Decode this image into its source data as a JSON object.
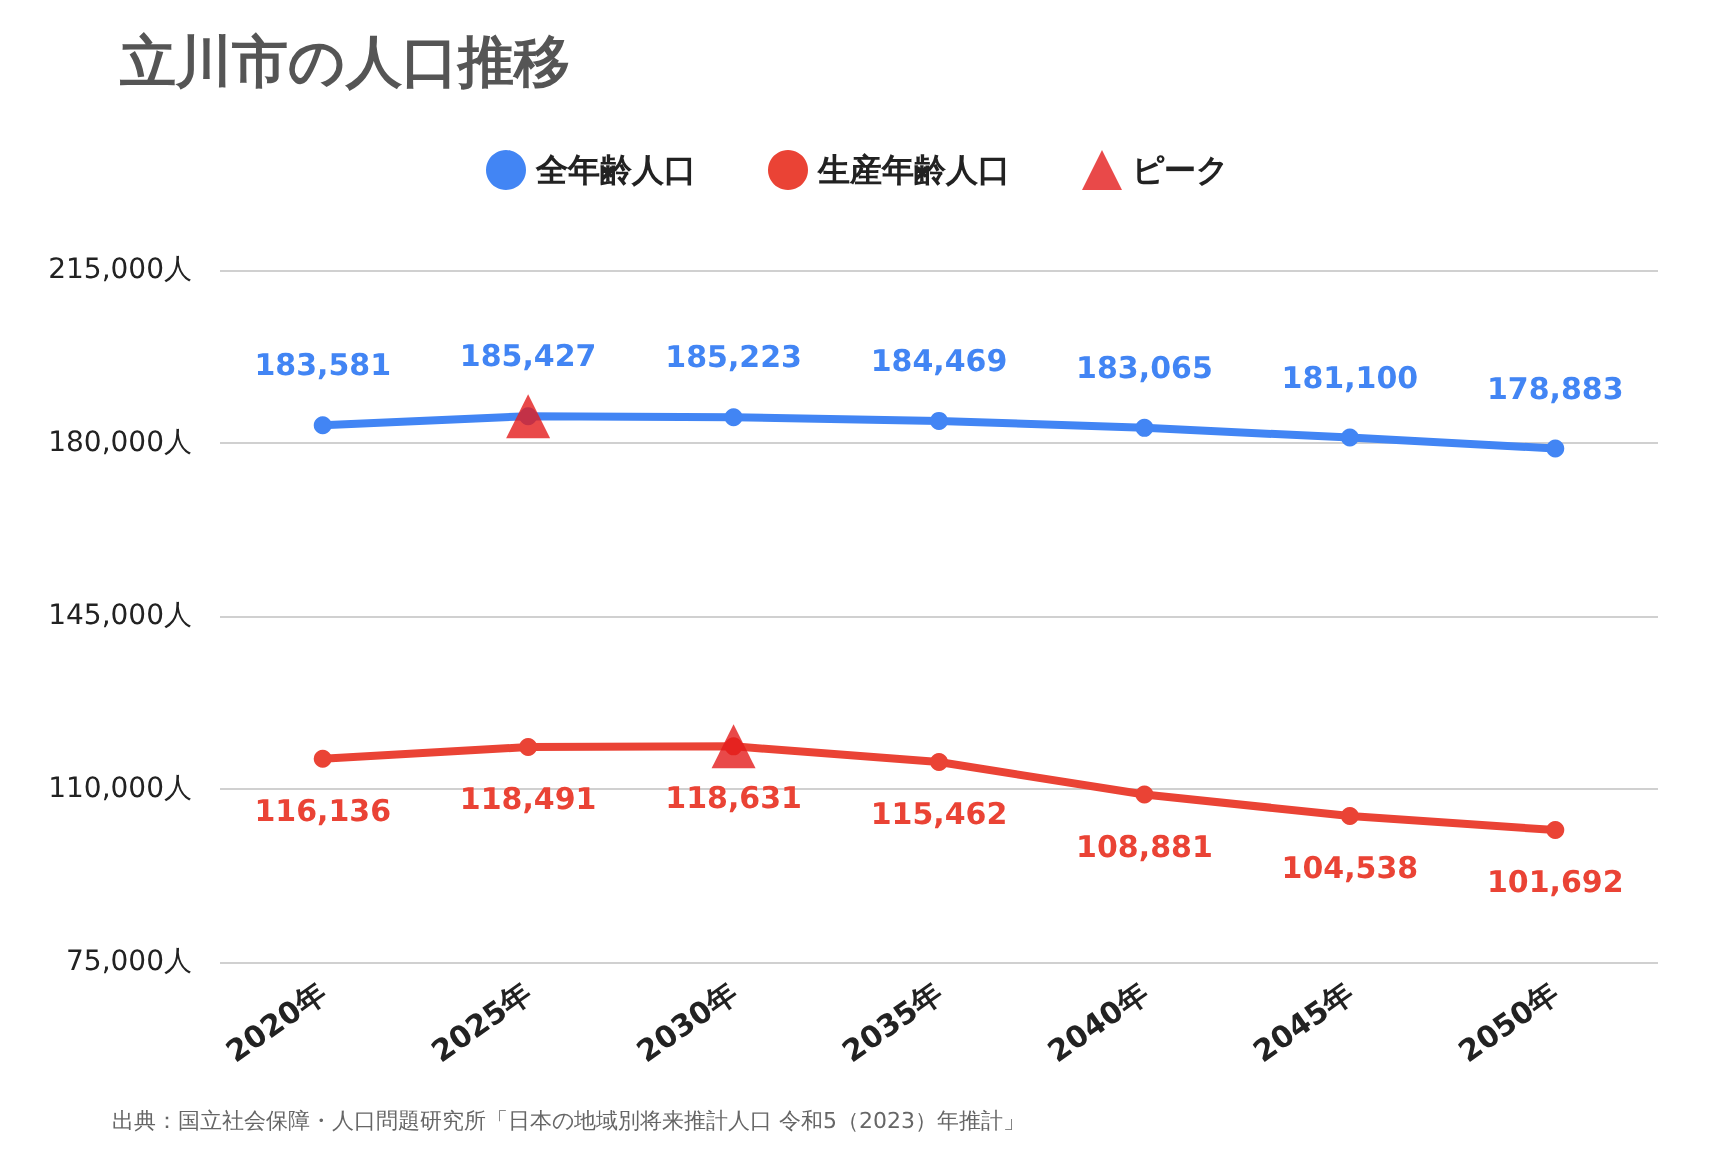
{
  "chart_data": {
    "type": "line",
    "title": "立川市の人口推移",
    "categories": [
      "2020年",
      "2025年",
      "2030年",
      "2035年",
      "2040年",
      "2045年",
      "2050年"
    ],
    "series": [
      {
        "name": "全年齢人口",
        "color": "#4285f4",
        "values": [
          183581,
          185427,
          185223,
          184469,
          183065,
          181100,
          178883
        ],
        "value_labels": [
          "183,581",
          "185,427",
          "185,223",
          "184,469",
          "183,065",
          "181,100",
          "178,883"
        ]
      },
      {
        "name": "生産年齢人口",
        "color": "#ea4335",
        "values": [
          116136,
          118491,
          118631,
          115462,
          108881,
          104538,
          101692
        ],
        "value_labels": [
          "116,136",
          "118,491",
          "118,631",
          "115,462",
          "108,881",
          "104,538",
          "101,692"
        ]
      },
      {
        "name": "ピーク",
        "type": "scatter",
        "color": "#e31c1c",
        "marker": "triangle",
        "x": [
          "2025年",
          "2030年"
        ],
        "values": [
          185427,
          118631
        ]
      }
    ],
    "ylim": [
      75000,
      215000
    ],
    "yticks": [
      {
        "value": 75000,
        "label": "75,000人"
      },
      {
        "value": 110000,
        "label": "110,000人"
      },
      {
        "value": 145000,
        "label": "145,000人"
      },
      {
        "value": 180000,
        "label": "180,000人"
      },
      {
        "value": 215000,
        "label": "215,000人"
      }
    ],
    "grid": "y",
    "legend": "top",
    "marker": "circle",
    "line_style": "solid",
    "annotations": [
      "出典：国立社会保障・人口問題研究所「日本の地域別将来推計人口 令和5（2023）年推計」"
    ]
  }
}
